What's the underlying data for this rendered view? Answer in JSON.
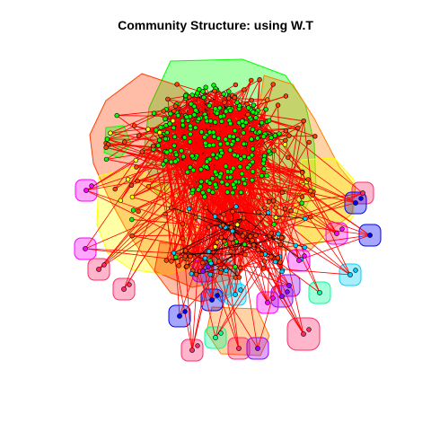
{
  "title": "Community Structure: using W.T",
  "colors": {
    "inter_community_edge": "#ff0000",
    "intra_community_edge": "#000000",
    "vertex_stroke": "#000000"
  },
  "communities": [
    {
      "id": "green-main",
      "color": "#00ff00"
    },
    {
      "id": "red-large",
      "color": "#ff4000"
    },
    {
      "id": "yellow-large",
      "color": "#ffff00"
    },
    {
      "id": "orange",
      "color": "#ff8000"
    },
    {
      "id": "magenta",
      "color": "#ff00ff"
    },
    {
      "id": "pink",
      "color": "#ff2a6a"
    },
    {
      "id": "blue",
      "color": "#0000ff"
    },
    {
      "id": "cyan",
      "color": "#00d0ff"
    },
    {
      "id": "mint",
      "color": "#00ff99"
    },
    {
      "id": "purple",
      "color": "#9900ff"
    }
  ]
}
